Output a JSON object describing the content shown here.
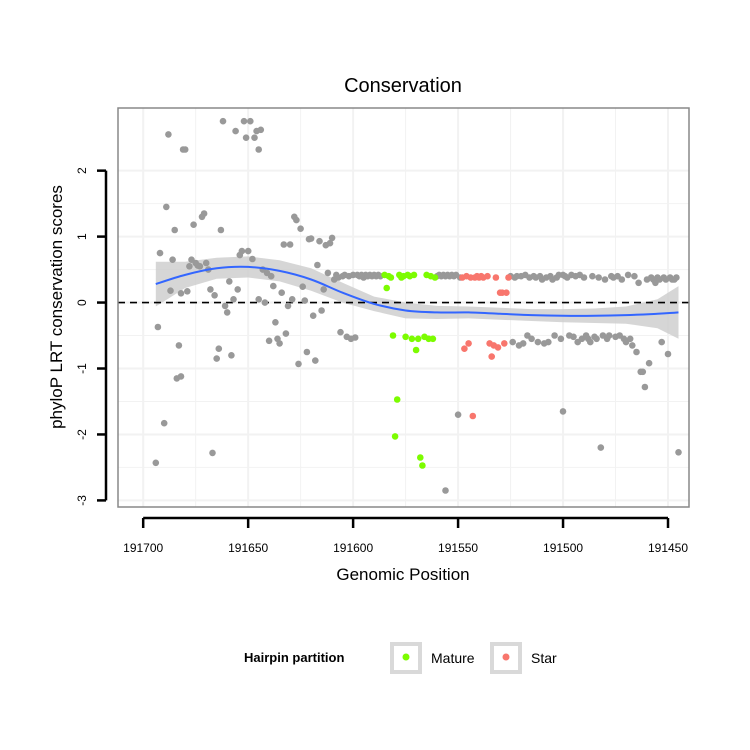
{
  "chart_data": {
    "type": "scatter",
    "title": "Conservation",
    "xlabel": "Genomic Position",
    "ylabel": "phyloP LRT conservation scores",
    "x_reversed": true,
    "xlim": [
      191712,
      191440
    ],
    "ylim": [
      -3.1,
      2.95
    ],
    "xticks": [
      191700,
      191650,
      191600,
      191550,
      191500,
      191450
    ],
    "xtick_labels": [
      "191700",
      "191650",
      "191600",
      "191550",
      "191500",
      "191450"
    ],
    "yticks": [
      2,
      1,
      0,
      -1,
      -2,
      -3
    ],
    "ytick_labels": [
      "2",
      "1",
      "0",
      "-1",
      "-2",
      "-3"
    ],
    "reference_line": {
      "y": 0,
      "style": "dashed"
    },
    "legend": {
      "title": "Hairpin partition",
      "position": "bottom",
      "entries": [
        {
          "label": "Mature",
          "color": "#7cfc00"
        },
        {
          "label": "Star",
          "color": "#f8766d"
        }
      ]
    },
    "colors": {
      "other": "#999999",
      "smooth_line": "#3366ff",
      "ribbon": "#cccccc",
      "panel_border": "#888888",
      "grid": "#f2f2f2"
    },
    "series": [
      {
        "name": "Other",
        "color": "#999999",
        "points": [
          [
            191694,
            -2.43
          ],
          [
            191693,
            -0.37
          ],
          [
            191692,
            0.75
          ],
          [
            191690,
            -1.83
          ],
          [
            191689,
            1.45
          ],
          [
            191688,
            2.55
          ],
          [
            191687,
            0.18
          ],
          [
            191686,
            0.65
          ],
          [
            191685,
            1.1
          ],
          [
            191684,
            -1.15
          ],
          [
            191683,
            -0.65
          ],
          [
            191682,
            0.14
          ],
          [
            191682,
            -1.12
          ],
          [
            191681,
            2.32
          ],
          [
            191680,
            2.32
          ],
          [
            191679,
            0.17
          ],
          [
            191678,
            0.55
          ],
          [
            191677,
            0.65
          ],
          [
            191676,
            1.18
          ],
          [
            191675,
            0.6
          ],
          [
            191674,
            0.56
          ],
          [
            191673,
            0.55
          ],
          [
            191672,
            1.3
          ],
          [
            191671,
            1.35
          ],
          [
            191670,
            0.6
          ],
          [
            191669,
            0.5
          ],
          [
            191668,
            0.2
          ],
          [
            191667,
            -2.28
          ],
          [
            191666,
            0.11
          ],
          [
            191665,
            -0.85
          ],
          [
            191664,
            -0.7
          ],
          [
            191663,
            1.1
          ],
          [
            191662,
            2.75
          ],
          [
            191661,
            -0.05
          ],
          [
            191660,
            -0.15
          ],
          [
            191659,
            0.32
          ],
          [
            191658,
            -0.8
          ],
          [
            191657,
            0.05
          ],
          [
            191656,
            2.6
          ],
          [
            191655,
            0.2
          ],
          [
            191654,
            0.72
          ],
          [
            191653,
            0.78
          ],
          [
            191652,
            2.75
          ],
          [
            191651,
            2.5
          ],
          [
            191650,
            0.78
          ],
          [
            191649,
            2.75
          ],
          [
            191648,
            0.66
          ],
          [
            191647,
            2.5
          ],
          [
            191646,
            2.6
          ],
          [
            191645,
            2.32
          ],
          [
            191645,
            0.05
          ],
          [
            191644,
            2.62
          ],
          [
            191643,
            0.5
          ],
          [
            191642,
            0.0
          ],
          [
            191641,
            0.45
          ],
          [
            191640,
            -0.58
          ],
          [
            191639,
            0.4
          ],
          [
            191638,
            0.25
          ],
          [
            191637,
            -0.3
          ],
          [
            191636,
            -0.55
          ],
          [
            191635,
            -0.62
          ],
          [
            191634,
            0.15
          ],
          [
            191633,
            0.88
          ],
          [
            191632,
            -0.47
          ],
          [
            191631,
            -0.05
          ],
          [
            191630,
            0.88
          ],
          [
            191629,
            0.05
          ],
          [
            191628,
            1.3
          ],
          [
            191627,
            1.25
          ],
          [
            191626,
            -0.93
          ],
          [
            191625,
            1.12
          ],
          [
            191624,
            0.24
          ],
          [
            191623,
            0.03
          ],
          [
            191622,
            -0.75
          ],
          [
            191621,
            0.96
          ],
          [
            191620,
            0.97
          ],
          [
            191619,
            -0.2
          ],
          [
            191618,
            -0.88
          ],
          [
            191617,
            0.57
          ],
          [
            191616,
            0.93
          ],
          [
            191615,
            -0.12
          ],
          [
            191614,
            0.2
          ],
          [
            191613,
            0.87
          ],
          [
            191612,
            0.45
          ],
          [
            191611,
            0.9
          ],
          [
            191610,
            0.98
          ],
          [
            191609,
            0.35
          ],
          [
            191608,
            0.42
          ],
          [
            191607,
            0.38
          ],
          [
            191606,
            -0.45
          ],
          [
            191605,
            0.4
          ],
          [
            191604,
            0.42
          ],
          [
            191603,
            -0.52
          ],
          [
            191602,
            0.4
          ],
          [
            191601,
            -0.55
          ],
          [
            191600,
            0.42
          ],
          [
            191599,
            -0.53
          ],
          [
            191598,
            0.42
          ],
          [
            191597,
            0.4
          ],
          [
            191596,
            0.42
          ],
          [
            191595,
            0.38
          ],
          [
            191594,
            0.42
          ],
          [
            191593,
            0.4
          ],
          [
            191592,
            0.42
          ],
          [
            191591,
            0.4
          ],
          [
            191590,
            0.42
          ],
          [
            191589,
            0.4
          ],
          [
            191588,
            0.42
          ],
          [
            191587,
            0.4
          ],
          [
            191560,
            0.4
          ],
          [
            191559,
            0.42
          ],
          [
            191558,
            0.4
          ],
          [
            191557,
            0.42
          ],
          [
            191556,
            0.4
          ],
          [
            191556,
            -2.85
          ],
          [
            191555,
            0.42
          ],
          [
            191554,
            0.4
          ],
          [
            191553,
            0.42
          ],
          [
            191552,
            0.4
          ],
          [
            191551,
            0.42
          ],
          [
            191550,
            -1.7
          ],
          [
            191549,
            0.38
          ],
          [
            191525,
            0.4
          ],
          [
            191524,
            -0.6
          ],
          [
            191523,
            0.38
          ],
          [
            191522,
            0.4
          ],
          [
            191521,
            -0.65
          ],
          [
            191520,
            0.4
          ],
          [
            191519,
            -0.62
          ],
          [
            191518,
            0.42
          ],
          [
            191517,
            -0.5
          ],
          [
            191516,
            0.38
          ],
          [
            191515,
            -0.55
          ],
          [
            191514,
            0.4
          ],
          [
            191513,
            0.38
          ],
          [
            191512,
            -0.6
          ],
          [
            191511,
            0.4
          ],
          [
            191510,
            0.35
          ],
          [
            191509,
            -0.62
          ],
          [
            191508,
            0.38
          ],
          [
            191507,
            -0.6
          ],
          [
            191506,
            0.4
          ],
          [
            191505,
            0.35
          ],
          [
            191504,
            -0.5
          ],
          [
            191503,
            0.38
          ],
          [
            191502,
            0.42
          ],
          [
            191501,
            -0.55
          ],
          [
            191500,
            0.42
          ],
          [
            191500,
            -1.65
          ],
          [
            191499,
            0.4
          ],
          [
            191498,
            0.38
          ],
          [
            191497,
            -0.5
          ],
          [
            191496,
            0.42
          ],
          [
            191495,
            -0.52
          ],
          [
            191494,
            0.4
          ],
          [
            191493,
            -0.6
          ],
          [
            191492,
            0.42
          ],
          [
            191491,
            -0.55
          ],
          [
            191490,
            0.38
          ],
          [
            191489,
            -0.5
          ],
          [
            191488,
            -0.55
          ],
          [
            191487,
            -0.6
          ],
          [
            191486,
            0.4
          ],
          [
            191485,
            -0.52
          ],
          [
            191484,
            -0.55
          ],
          [
            191483,
            0.38
          ],
          [
            191482,
            -2.2
          ],
          [
            191481,
            -0.5
          ],
          [
            191480,
            0.35
          ],
          [
            191479,
            -0.55
          ],
          [
            191478,
            -0.5
          ],
          [
            191477,
            0.4
          ],
          [
            191476,
            0.38
          ],
          [
            191475,
            -0.52
          ],
          [
            191474,
            0.4
          ],
          [
            191473,
            -0.5
          ],
          [
            191472,
            0.35
          ],
          [
            191471,
            -0.55
          ],
          [
            191470,
            -0.6
          ],
          [
            191469,
            0.42
          ],
          [
            191468,
            -0.55
          ],
          [
            191467,
            -0.65
          ],
          [
            191466,
            0.4
          ],
          [
            191465,
            -0.75
          ],
          [
            191464,
            0.3
          ],
          [
            191463,
            -1.05
          ],
          [
            191462,
            -1.05
          ],
          [
            191461,
            -1.28
          ],
          [
            191460,
            0.35
          ],
          [
            191459,
            -0.92
          ],
          [
            191458,
            0.38
          ],
          [
            191457,
            0.35
          ],
          [
            191456,
            0.3
          ],
          [
            191455,
            0.38
          ],
          [
            191454,
            0.35
          ],
          [
            191453,
            -0.6
          ],
          [
            191452,
            0.38
          ],
          [
            191451,
            0.35
          ],
          [
            191450,
            -0.78
          ],
          [
            191449,
            0.38
          ],
          [
            191448,
            0.35
          ],
          [
            191447,
            0.35
          ],
          [
            191446,
            0.38
          ],
          [
            191445,
            -2.27
          ]
        ]
      },
      {
        "name": "Mature",
        "color": "#7cfc00",
        "points": [
          [
            191585,
            0.42
          ],
          [
            191584,
            0.22
          ],
          [
            191583,
            0.4
          ],
          [
            191582,
            0.38
          ],
          [
            191581,
            -0.5
          ],
          [
            191580,
            -2.03
          ],
          [
            191579,
            -1.47
          ],
          [
            191578,
            0.42
          ],
          [
            191577,
            0.38
          ],
          [
            191576,
            0.4
          ],
          [
            191575,
            -0.52
          ],
          [
            191574,
            0.42
          ],
          [
            191573,
            0.4
          ],
          [
            191572,
            -0.55
          ],
          [
            191571,
            0.42
          ],
          [
            191570,
            -0.72
          ],
          [
            191569,
            -0.55
          ],
          [
            191568,
            -2.35
          ],
          [
            191567,
            -2.47
          ],
          [
            191566,
            -0.52
          ],
          [
            191565,
            0.42
          ],
          [
            191564,
            -0.55
          ],
          [
            191563,
            0.4
          ],
          [
            191562,
            -0.55
          ],
          [
            191561,
            0.38
          ]
        ]
      },
      {
        "name": "Star",
        "color": "#f8766d",
        "points": [
          [
            191548,
            0.38
          ],
          [
            191547,
            -0.7
          ],
          [
            191546,
            0.4
          ],
          [
            191545,
            -0.62
          ],
          [
            191544,
            0.38
          ],
          [
            191543,
            -1.72
          ],
          [
            191542,
            0.38
          ],
          [
            191541,
            0.4
          ],
          [
            191540,
            0.38
          ],
          [
            191539,
            0.4
          ],
          [
            191538,
            0.38
          ],
          [
            191536,
            0.4
          ],
          [
            191535,
            -0.62
          ],
          [
            191534,
            -0.82
          ],
          [
            191533,
            -0.65
          ],
          [
            191532,
            0.38
          ],
          [
            191531,
            -0.68
          ],
          [
            191530,
            0.15
          ],
          [
            191529,
            0.15
          ],
          [
            191528,
            -0.62
          ],
          [
            191527,
            0.15
          ],
          [
            191526,
            0.38
          ]
        ]
      }
    ],
    "smooth_fit": {
      "x": [
        191694,
        191680,
        191665,
        191650,
        191635,
        191620,
        191605,
        191590,
        191575,
        191560,
        191545,
        191530,
        191515,
        191500,
        191485,
        191470,
        191455,
        191445
      ],
      "y": [
        0.28,
        0.42,
        0.52,
        0.54,
        0.48,
        0.35,
        0.15,
        -0.02,
        -0.12,
        -0.15,
        -0.15,
        -0.17,
        -0.19,
        -0.2,
        -0.2,
        -0.19,
        -0.17,
        -0.15
      ],
      "upper": [
        0.62,
        0.62,
        0.68,
        0.7,
        0.64,
        0.52,
        0.3,
        0.09,
        0.0,
        -0.05,
        -0.06,
        -0.08,
        -0.1,
        -0.1,
        -0.09,
        -0.06,
        0.05,
        0.25
      ],
      "lower": [
        -0.06,
        0.22,
        0.36,
        0.38,
        0.32,
        0.18,
        0.0,
        -0.13,
        -0.24,
        -0.25,
        -0.24,
        -0.26,
        -0.28,
        -0.3,
        -0.31,
        -0.32,
        -0.39,
        -0.55
      ]
    }
  }
}
